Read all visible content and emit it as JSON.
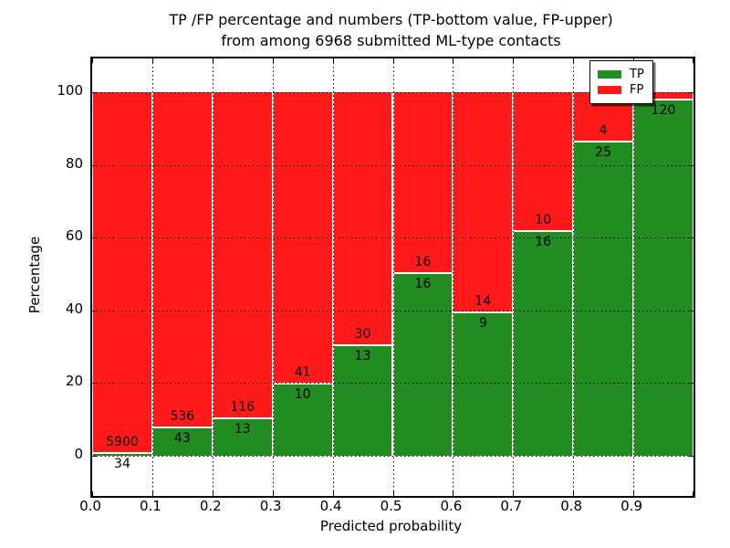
{
  "figure": {
    "title_line1": "TP /FP percentage and numbers (TP-bottom value, FP-upper)",
    "title_line2": "from among 6968 submitted ML-type contacts"
  },
  "chart_data": {
    "type": "bar",
    "subtype": "stacked-percentage-histogram",
    "title": "TP /FP percentage and numbers (TP-bottom value, FP-upper)\nfrom among 6968 submitted ML-type contacts",
    "xlabel": "Predicted probability",
    "ylabel": "Percentage",
    "total_contacts": 6968,
    "xlim": [
      0.0,
      1.0
    ],
    "ylim": [
      -11.1,
      109.3
    ],
    "bin_width": 0.1,
    "x_tick_labels": [
      "0.0",
      "0.1",
      "0.2",
      "0.3",
      "0.4",
      "0.5",
      "0.6",
      "0.7",
      "0.8",
      "0.9"
    ],
    "y_ticks": [
      0,
      20,
      40,
      60,
      80,
      100
    ],
    "grid": "dotted-black-both-axes",
    "colors": {
      "tp": "#228B22",
      "fp": "#FF1A1A",
      "bar_edge": "#ffffff"
    },
    "legend": {
      "position": "upper-right",
      "entries": [
        {
          "label": "TP",
          "color": "#228B22"
        },
        {
          "label": "FP",
          "color": "#FF1A1A"
        }
      ]
    },
    "bins": [
      {
        "x0": 0.0,
        "x1": 0.1,
        "tp": 34,
        "fp": 5900,
        "tp_percent": 0.57
      },
      {
        "x0": 0.1,
        "x1": 0.2,
        "tp": 43,
        "fp": 536,
        "tp_percent": 7.43
      },
      {
        "x0": 0.2,
        "x1": 0.3,
        "tp": 13,
        "fp": 116,
        "tp_percent": 10.08
      },
      {
        "x0": 0.3,
        "x1": 0.4,
        "tp": 10,
        "fp": 41,
        "tp_percent": 19.61
      },
      {
        "x0": 0.4,
        "x1": 0.5,
        "tp": 13,
        "fp": 30,
        "tp_percent": 30.23
      },
      {
        "x0": 0.5,
        "x1": 0.6,
        "tp": 16,
        "fp": 16,
        "tp_percent": 50.0
      },
      {
        "x0": 0.6,
        "x1": 0.7,
        "tp": 9,
        "fp": 14,
        "tp_percent": 39.13
      },
      {
        "x0": 0.7,
        "x1": 0.8,
        "tp": 16,
        "fp": 10,
        "tp_percent": 61.54
      },
      {
        "x0": 0.8,
        "x1": 0.9,
        "tp": 25,
        "fp": 4,
        "tp_percent": 86.21
      },
      {
        "x0": 0.9,
        "x1": 1.0,
        "tp": 120,
        "fp": null,
        "tp_percent": 97.7,
        "fp_label_visible": false
      }
    ]
  }
}
